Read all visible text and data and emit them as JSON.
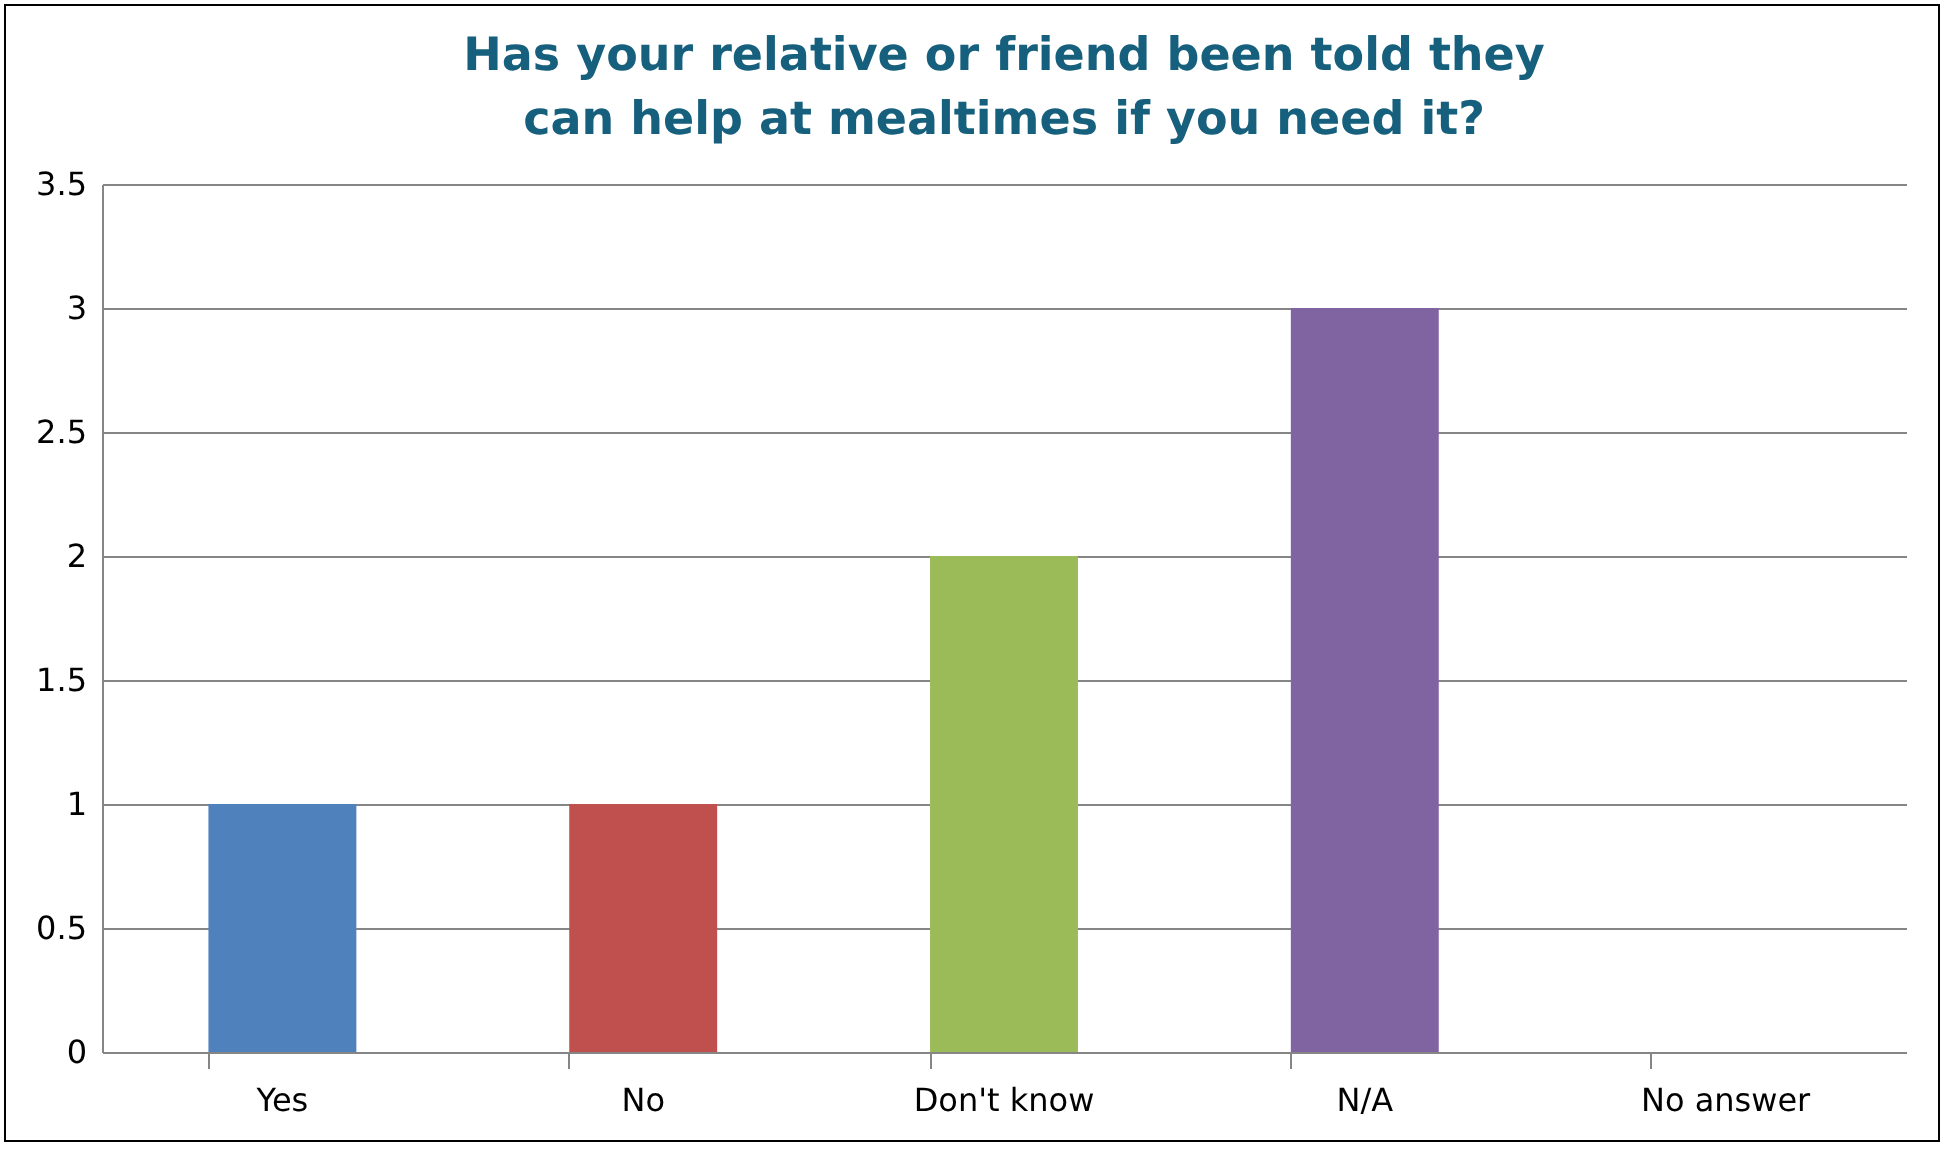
{
  "chart_data": {
    "type": "bar",
    "title": "Has your relative or friend been told they\ncan help at mealtimes if you need it?",
    "categories": [
      "Yes",
      "No",
      "Don't know",
      "N/A",
      "No answer"
    ],
    "values": [
      1,
      1,
      2,
      3,
      0
    ],
    "colors": [
      "#4f81bd",
      "#c0504d",
      "#9bbb59",
      "#8064a2",
      "#4bacc6"
    ],
    "ylim": [
      0,
      3.5
    ],
    "yticks": [
      0,
      0.5,
      1,
      1.5,
      2,
      2.5,
      3,
      3.5
    ],
    "grid": "y",
    "legend": false
  }
}
